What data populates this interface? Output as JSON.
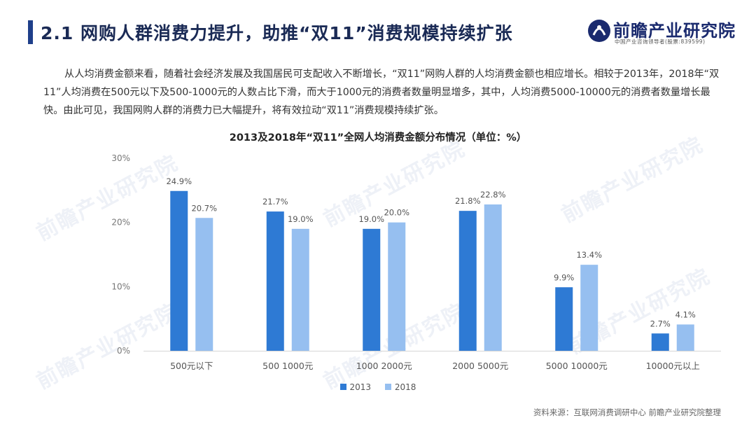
{
  "header": {
    "title": "2.1 网购人群消费力提升，助推“双11”消费规模持续扩张",
    "logo_name": "前瞻产业研究院",
    "logo_sub": "中国产业咨询领导者(股票:839599)"
  },
  "paragraph": "从人均消费金额来看，随着社会经济发展及我国居民可支配收入不断增长，“双11”网购人群的人均消费金额也相应增长。相较于2013年，2018年“双11”人均消费在500元以下及500-1000元的人数占比下滑，而大于1000元的消费者数量明显增多，其中，人均消费5000-10000元的消费者数量增长最快。由此可见，我国网购人群的消费力已大幅提升，将有效拉动“双11”消费规模持续扩张。",
  "watermark_text": "前瞻产业研究院",
  "chart_data": {
    "type": "bar",
    "title": "2013及2018年“双11”全网人均消费金额分布情况（单位：%）",
    "categories": [
      "500元以下",
      "500 1000元",
      "1000 2000元",
      "2000 5000元",
      "5000 10000元",
      "10000元以上"
    ],
    "series": [
      {
        "name": "2013",
        "values": [
          24.9,
          21.7,
          19.0,
          21.8,
          9.9,
          2.7
        ],
        "labels": [
          "24.9%",
          "21.7%",
          "19.0%",
          "21.8%",
          "9.9%",
          "2.7%"
        ],
        "color": "#2e7ad4"
      },
      {
        "name": "2018",
        "values": [
          20.7,
          19.0,
          20.0,
          22.8,
          13.4,
          4.1
        ],
        "labels": [
          "20.7%",
          "19.0%",
          "20.0%",
          "22.8%",
          "13.4%",
          "4.1%"
        ],
        "color": "#96bff0"
      }
    ],
    "ylim": [
      0,
      30
    ],
    "yticks": [
      0,
      10,
      20,
      30
    ],
    "ytick_labels": [
      "0%",
      "10%",
      "20%",
      "30%"
    ],
    "xlabel": "",
    "ylabel": "",
    "legend_position": "bottom",
    "grid": false
  },
  "source": "资料来源：互联网消费调研中心 前瞻产业研究院整理",
  "colors": {
    "title_accent": "#1f3f8a",
    "logo": "#1a2a6e"
  }
}
